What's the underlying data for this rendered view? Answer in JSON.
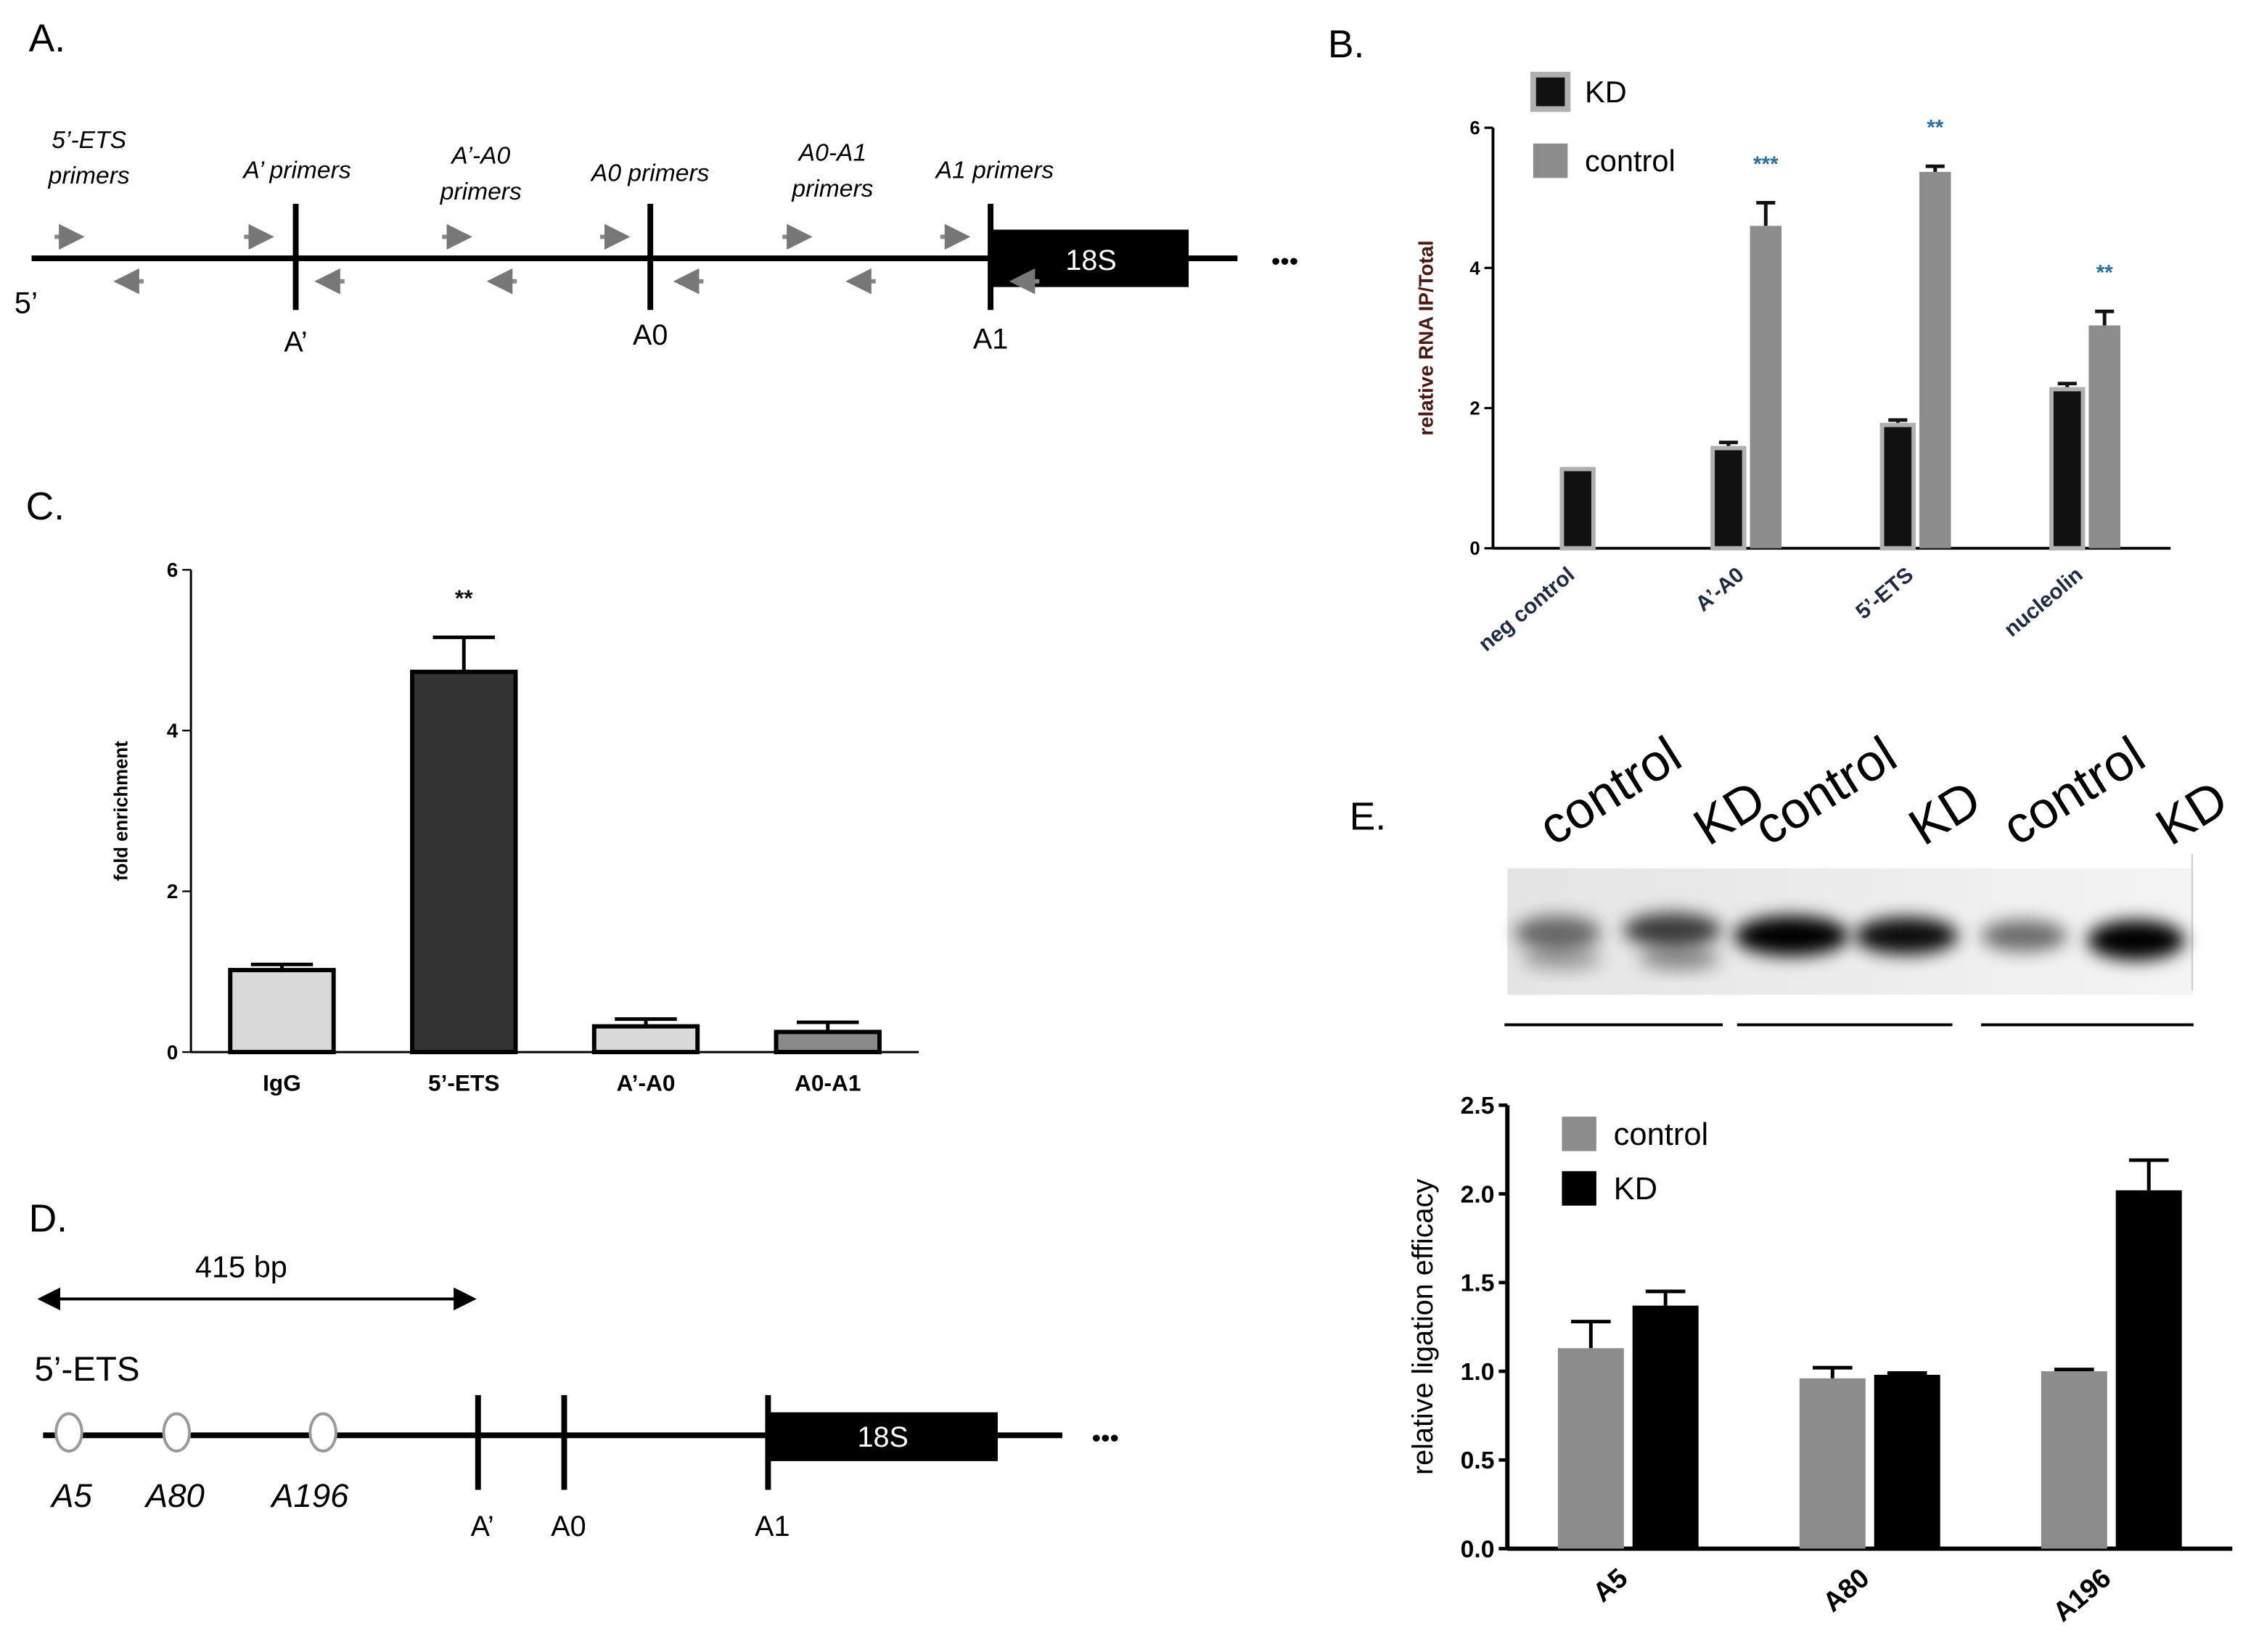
{
  "panel_labels": [
    "A.",
    "B.",
    "C.",
    "D.",
    "E."
  ],
  "diagram_a": {
    "primers": [
      [
        "5’-ETS",
        "primers"
      ],
      [
        "A’ primers"
      ],
      [
        "A’-A0",
        "primers"
      ],
      [
        "A0 primers"
      ],
      [
        "A0-A1",
        "primers"
      ],
      [
        "A1 primers"
      ]
    ],
    "sites": [
      "A’",
      "A0",
      "A1"
    ],
    "end_label": "5’",
    "box_label": "18S",
    "ellipsis": "•••"
  },
  "chart_data": [
    {
      "type": "bar",
      "ylabel": "relative RNA IP/Total",
      "categories": [
        "neg control",
        "A’-A0",
        "5’-ETS",
        "nucleolin"
      ],
      "series": [
        {
          "name": "KD",
          "color": "#111111",
          "edgecolor": "#b0b0b0",
          "values": [
            1.13,
            1.43,
            1.76,
            2.27
          ],
          "errors": [
            null,
            0.08,
            0.07,
            0.08
          ]
        },
        {
          "name": "control",
          "color": "#8c8c8c",
          "values": [
            null,
            4.6,
            5.37,
            3.18
          ],
          "errors": [
            null,
            0.33,
            0.08,
            0.2
          ]
        }
      ],
      "annotations": [
        null,
        "***",
        "**",
        "**"
      ],
      "annotation_color": "#2f6f9f",
      "ylim": [
        0,
        6
      ],
      "yticks": [
        0,
        2,
        4,
        6
      ],
      "legend": "upper left"
    },
    {
      "type": "bar",
      "ylabel": "fold enrichment",
      "categories": [
        "IgG",
        "5’-ETS",
        "A’-A0",
        "A0-A1"
      ],
      "values": [
        1.02,
        4.73,
        0.32,
        0.25
      ],
      "errors": [
        0.07,
        0.43,
        0.09,
        0.12
      ],
      "colors": [
        "#d9d9d9",
        "#333333",
        "#d9d9d9",
        "#8a8a8a"
      ],
      "edgecolor": "#000000",
      "annotations": [
        null,
        "**",
        null,
        null
      ],
      "annotation_color": "#111111",
      "ylim": [
        0,
        6
      ],
      "yticks": [
        0,
        2,
        4,
        6
      ]
    },
    {
      "type": "bar",
      "ylabel": "relative ligation efficacy",
      "categories": [
        "A5",
        "A80",
        "A196"
      ],
      "series": [
        {
          "name": "control",
          "color": "#8c8c8c",
          "values": [
            1.13,
            0.96,
            1.0
          ],
          "errors": [
            0.15,
            0.06,
            0.01
          ]
        },
        {
          "name": "KD",
          "color": "#000000",
          "values": [
            1.37,
            0.98,
            2.02
          ],
          "errors": [
            0.08,
            0.01,
            0.17
          ]
        }
      ],
      "ylim": [
        0,
        2.5
      ],
      "yticks": [
        {
          "value": 0,
          "label": "0.0"
        },
        0.5,
        {
          "value": 1,
          "label": "1.0"
        },
        1.5,
        {
          "value": 2,
          "label": "2.0"
        },
        2.5
      ],
      "legend": "upper left"
    }
  ],
  "blot_e": {
    "lanes": [
      "control",
      "KD",
      "control",
      "KD",
      "control",
      "KD"
    ]
  },
  "diagram_d": {
    "span_label": "415 bp",
    "region_label": "5’-ETS",
    "sites": [
      "A5",
      "A80",
      "A196"
    ],
    "cleavage_sites": [
      "A’",
      "A0",
      "A1"
    ],
    "box_label": "18S",
    "ellipsis": "•••"
  }
}
